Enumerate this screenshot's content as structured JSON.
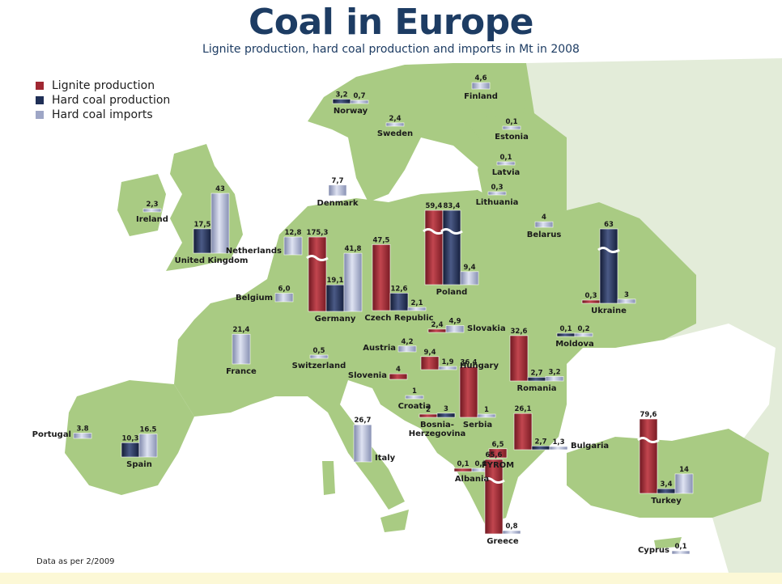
{
  "title": "Coal in Europe",
  "subtitle": "Lignite production, hard coal production and imports in Mt in 2008",
  "footnote": "Data as per 2/2009",
  "colors": {
    "lignite": "#a02732",
    "hard_coal": "#1f2f56",
    "imports": "#9ea6c6",
    "land": "#a9cb83",
    "land_other": "#e3ecd9",
    "sea": "#ffffff"
  },
  "chart_data": {
    "type": "bar",
    "title": "Coal in Europe",
    "subtitle": "Lignite production, hard coal production and imports in Mt in 2008",
    "unit": "Mt",
    "legend": [
      {
        "key": "lignite",
        "label": "Lignite production"
      },
      {
        "key": "hard_coal",
        "label": "Hard coal production"
      },
      {
        "key": "imports",
        "label": "Hard coal imports"
      }
    ],
    "legend_position": "top-left",
    "countries": [
      {
        "name": "Finland",
        "bars": [
          {
            "series": "imports",
            "value": 4.6,
            "label": "4,6"
          }
        ]
      },
      {
        "name": "Norway",
        "bars": [
          {
            "series": "hard_coal",
            "value": 3.2,
            "label": "3,2"
          },
          {
            "series": "imports",
            "value": 0.7,
            "label": "0,7"
          }
        ]
      },
      {
        "name": "Sweden",
        "bars": [
          {
            "series": "imports",
            "value": 2.4,
            "label": "2,4"
          }
        ]
      },
      {
        "name": "Estonia",
        "bars": [
          {
            "series": "imports",
            "value": 0.1,
            "label": "0,1"
          }
        ]
      },
      {
        "name": "Latvia",
        "bars": [
          {
            "series": "imports",
            "value": 0.1,
            "label": "0,1"
          }
        ]
      },
      {
        "name": "Lithuania",
        "bars": [
          {
            "series": "imports",
            "value": 0.3,
            "label": "0,3"
          }
        ]
      },
      {
        "name": "Ireland",
        "bars": [
          {
            "series": "imports",
            "value": 2.3,
            "label": "2,3"
          }
        ]
      },
      {
        "name": "United Kingdom",
        "bars": [
          {
            "series": "hard_coal",
            "value": 17.5,
            "label": "17,5"
          },
          {
            "series": "imports",
            "value": 43,
            "label": "43"
          }
        ]
      },
      {
        "name": "Denmark",
        "bars": [
          {
            "series": "imports",
            "value": 7.7,
            "label": "7,7"
          }
        ]
      },
      {
        "name": "Netherlands",
        "bars": [
          {
            "series": "imports",
            "value": 12.8,
            "label": "12,8"
          }
        ]
      },
      {
        "name": "Belgium",
        "bars": [
          {
            "series": "imports",
            "value": 6.0,
            "label": "6,0"
          }
        ]
      },
      {
        "name": "Germany",
        "bars": [
          {
            "series": "lignite",
            "value": 175.3,
            "label": "175,3"
          },
          {
            "series": "hard_coal",
            "value": 19.1,
            "label": "19,1"
          },
          {
            "series": "imports",
            "value": 41.8,
            "label": "41,8"
          }
        ]
      },
      {
        "name": "Czech Republic",
        "bars": [
          {
            "series": "lignite",
            "value": 47.5,
            "label": "47,5"
          },
          {
            "series": "hard_coal",
            "value": 12.6,
            "label": "12,6"
          },
          {
            "series": "imports",
            "value": 2.1,
            "label": "2,1"
          }
        ]
      },
      {
        "name": "Poland",
        "bars": [
          {
            "series": "lignite",
            "value": 59.4,
            "label": "59,4"
          },
          {
            "series": "hard_coal",
            "value": 83.4,
            "label": "83,4"
          },
          {
            "series": "imports",
            "value": 9.4,
            "label": "9,4"
          }
        ]
      },
      {
        "name": "Belarus",
        "bars": [
          {
            "series": "imports",
            "value": 4,
            "label": "4"
          }
        ]
      },
      {
        "name": "Ukraine",
        "bars": [
          {
            "series": "lignite",
            "value": 0.3,
            "label": "0,3"
          },
          {
            "series": "hard_coal",
            "value": 63,
            "label": "63"
          },
          {
            "series": "imports",
            "value": 3,
            "label": "3"
          }
        ]
      },
      {
        "name": "Slovakia",
        "bars": [
          {
            "series": "lignite",
            "value": 2.4,
            "label": "2,4"
          },
          {
            "series": "imports",
            "value": 4.9,
            "label": "4,9"
          }
        ]
      },
      {
        "name": "France",
        "bars": [
          {
            "series": "imports",
            "value": 21.4,
            "label": "21,4"
          }
        ]
      },
      {
        "name": "Switzerland",
        "bars": [
          {
            "series": "imports",
            "value": 0.5,
            "label": "0,5"
          }
        ]
      },
      {
        "name": "Austria",
        "bars": [
          {
            "series": "imports",
            "value": 4.2,
            "label": "4,2"
          }
        ]
      },
      {
        "name": "Hungary",
        "bars": [
          {
            "series": "lignite",
            "value": 9.4,
            "label": "9,4"
          },
          {
            "series": "imports",
            "value": 1.9,
            "label": "1,9"
          }
        ]
      },
      {
        "name": "Slovenia",
        "bars": [
          {
            "series": "lignite",
            "value": 4,
            "label": "4"
          }
        ]
      },
      {
        "name": "Moldova",
        "bars": [
          {
            "series": "hard_coal",
            "value": 0.1,
            "label": "0,1"
          },
          {
            "series": "imports",
            "value": 0.2,
            "label": "0,2"
          }
        ]
      },
      {
        "name": "Romania",
        "bars": [
          {
            "series": "lignite",
            "value": 32.6,
            "label": "32,6"
          },
          {
            "series": "hard_coal",
            "value": 2.7,
            "label": "2,7"
          },
          {
            "series": "imports",
            "value": 3.2,
            "label": "3,2"
          }
        ]
      },
      {
        "name": "Croatia",
        "bars": [
          {
            "series": "imports",
            "value": 1,
            "label": "1"
          }
        ]
      },
      {
        "name": "Serbia",
        "bars": [
          {
            "series": "lignite",
            "value": 36.4,
            "label": "36,4"
          },
          {
            "series": "imports",
            "value": 1,
            "label": "1"
          }
        ]
      },
      {
        "name": "Bosnia-Herzegovina",
        "bars": [
          {
            "series": "lignite",
            "value": 2,
            "label": "2"
          },
          {
            "series": "hard_coal",
            "value": 3,
            "label": "3"
          }
        ]
      },
      {
        "name": "Bulgaria",
        "bars": [
          {
            "series": "lignite",
            "value": 26.1,
            "label": "26,1"
          },
          {
            "series": "hard_coal",
            "value": 2.7,
            "label": "2,7"
          },
          {
            "series": "imports",
            "value": 1.3,
            "label": "1,3"
          }
        ]
      },
      {
        "name": "Portugal",
        "bars": [
          {
            "series": "imports",
            "value": 3.8,
            "label": "3.8"
          }
        ]
      },
      {
        "name": "Spain",
        "bars": [
          {
            "series": "hard_coal",
            "value": 10.3,
            "label": "10,3"
          },
          {
            "series": "imports",
            "value": 16.5,
            "label": "16.5"
          }
        ]
      },
      {
        "name": "Italy",
        "bars": [
          {
            "series": "imports",
            "value": 26.7,
            "label": "26,7"
          }
        ]
      },
      {
        "name": "FYROM",
        "bars": [
          {
            "series": "lignite",
            "value": 6.5,
            "label": "6,5"
          }
        ]
      },
      {
        "name": "Albania",
        "bars": [
          {
            "series": "lignite",
            "value": 0.1,
            "label": "0,1"
          },
          {
            "series": "imports",
            "value": 0.1,
            "label": "0,1"
          }
        ]
      },
      {
        "name": "Greece",
        "bars": [
          {
            "series": "lignite",
            "value": 65.6,
            "label": "65,6"
          },
          {
            "series": "imports",
            "value": 0.8,
            "label": "0,8"
          }
        ]
      },
      {
        "name": "Turkey",
        "bars": [
          {
            "series": "lignite",
            "value": 79.6,
            "label": "79,6"
          },
          {
            "series": "hard_coal",
            "value": 3.4,
            "label": "3,4"
          },
          {
            "series": "imports",
            "value": 14,
            "label": "14"
          }
        ]
      },
      {
        "name": "Cyprus",
        "bars": [
          {
            "series": "imports",
            "value": 0.1,
            "label": "0,1"
          }
        ]
      }
    ]
  }
}
